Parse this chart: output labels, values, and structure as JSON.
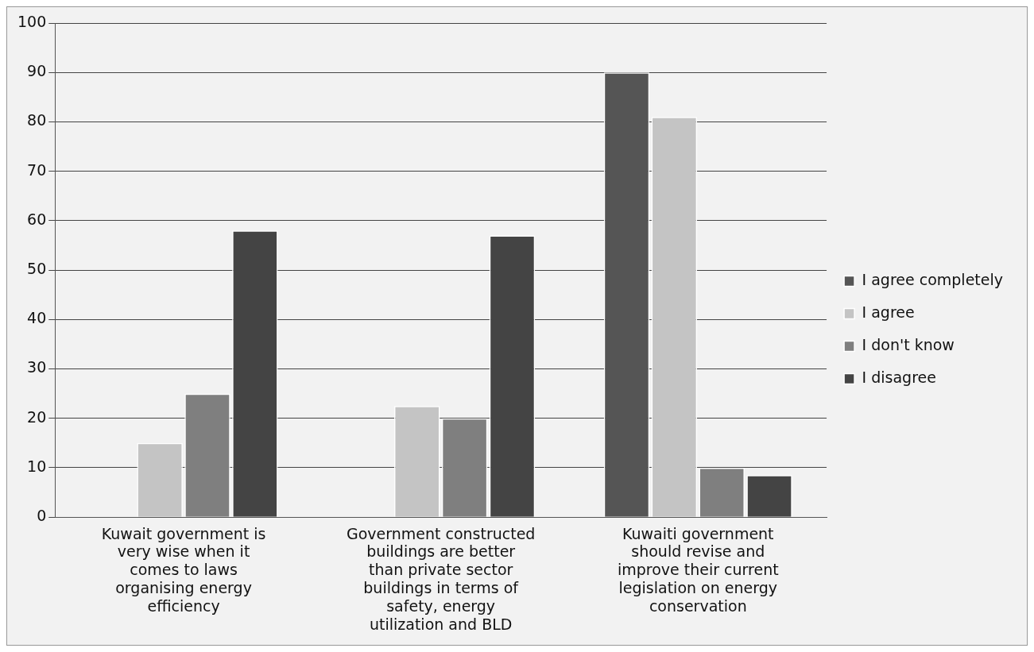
{
  "chart_data": {
    "type": "bar",
    "categories": [
      "Kuwait government is very wise when it comes to laws organising energy efficiency",
      "Government constructed buildings are better than private sector buildings in terms of safety, energy utilization and BLD",
      "Kuwaiti government should revise and improve their current legislation on energy conservation"
    ],
    "series": [
      {
        "name": "I agree completely",
        "color": "#555555",
        "values": [
          0,
          0,
          90
        ]
      },
      {
        "name": "I agree",
        "color": "#c4c4c4",
        "values": [
          15,
          22.5,
          81
        ]
      },
      {
        "name": "I don't know",
        "color": "#7f7f7f",
        "values": [
          25,
          20,
          10
        ]
      },
      {
        "name": "I disagree",
        "color": "#444444",
        "values": [
          58,
          57,
          8.5
        ]
      }
    ],
    "ylim": [
      0,
      100
    ],
    "yticks": [
      0,
      10,
      20,
      30,
      40,
      50,
      60,
      70,
      80,
      90,
      100
    ],
    "grid": "y",
    "legend": "right"
  }
}
